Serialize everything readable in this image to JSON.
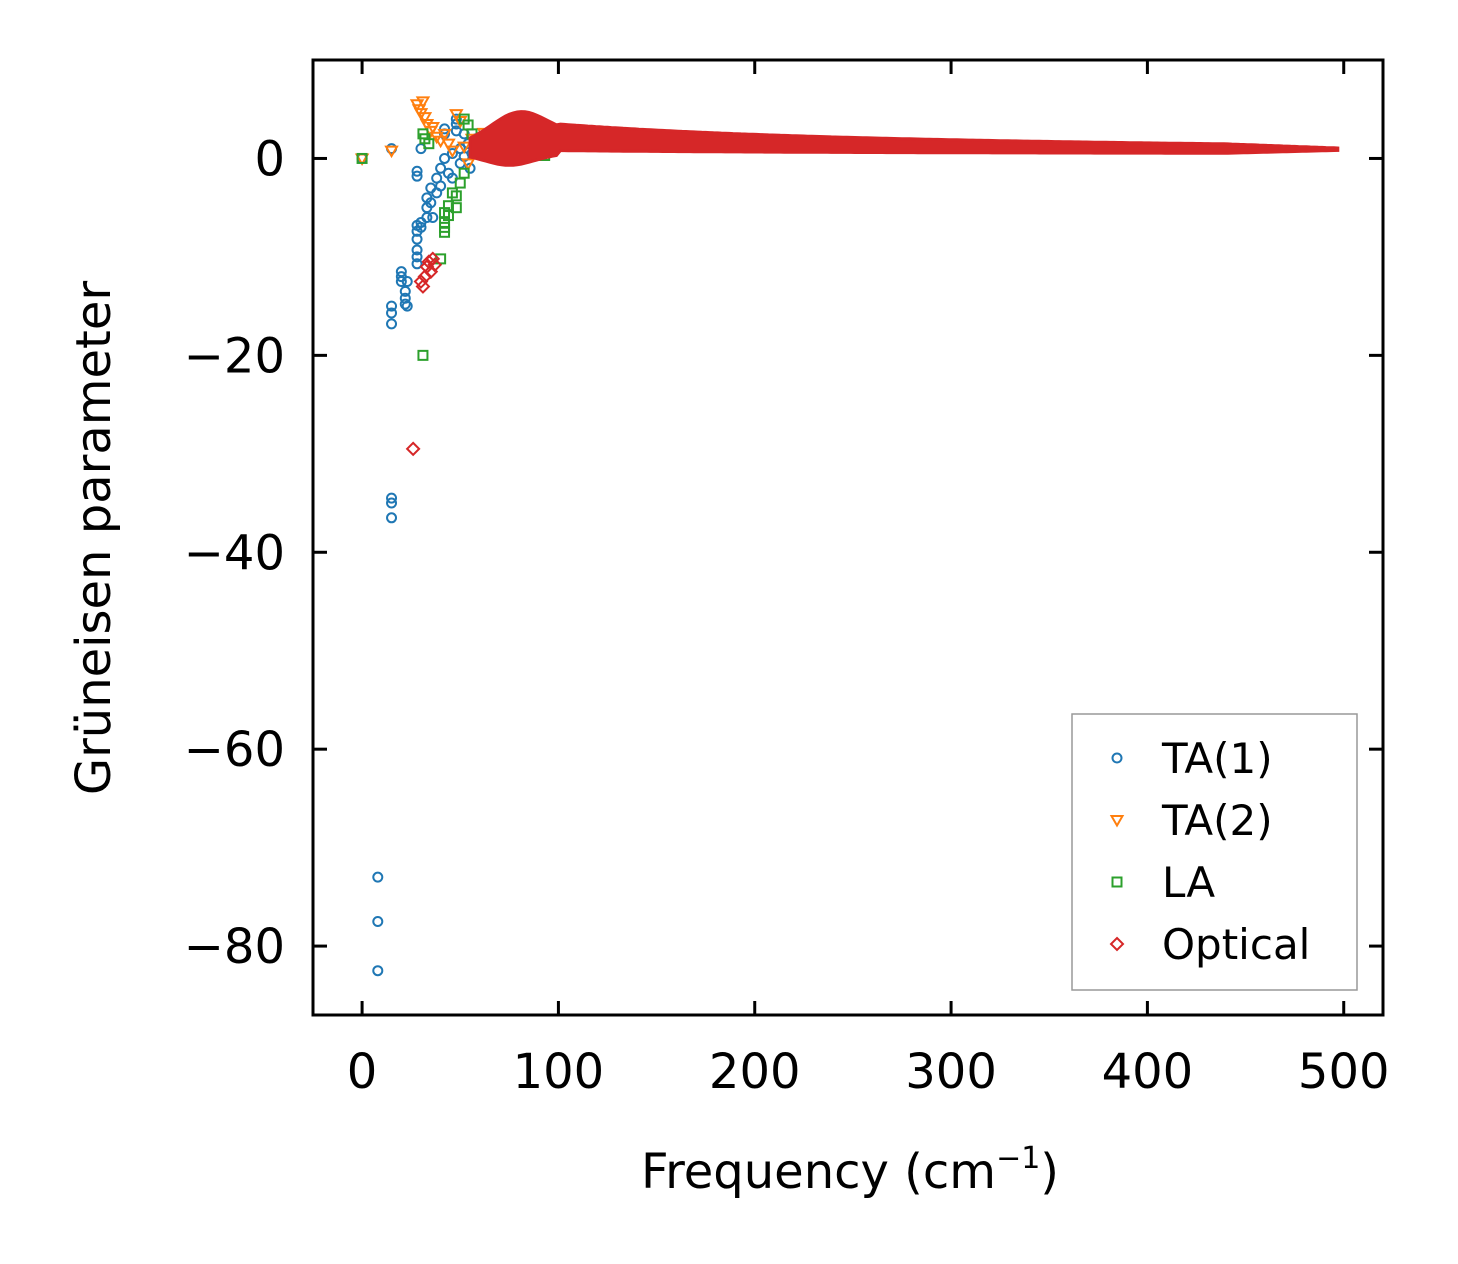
{
  "chart_data": {
    "type": "scatter",
    "title": "",
    "xlabel_main": "Frequency (cm",
    "xlabel_sup": "−1",
    "xlabel_tail": ")",
    "ylabel": "Grüneisen parameter",
    "xlim": [
      -25,
      520
    ],
    "ylim": [
      -87,
      10
    ],
    "xticks": [
      0,
      100,
      200,
      300,
      400,
      500
    ],
    "xtick_labels": [
      "0",
      "100",
      "200",
      "300",
      "400",
      "500"
    ],
    "yticks": [
      0,
      -20,
      -40,
      -60,
      -80
    ],
    "ytick_labels": [
      "0",
      "−20",
      "−40",
      "−60",
      "−80"
    ],
    "legend_position": "lower-right",
    "series": [
      {
        "name": "TA(1)",
        "marker": "circle",
        "color": "#1f77b4",
        "points": [
          [
            0,
            0
          ],
          [
            8,
            -73
          ],
          [
            8,
            -77.5
          ],
          [
            8,
            -82.5
          ],
          [
            15,
            -34.5
          ],
          [
            15,
            -35
          ],
          [
            15,
            -36.5
          ],
          [
            15,
            -15
          ],
          [
            15,
            -15.7
          ],
          [
            15,
            -16.8
          ],
          [
            15,
            1
          ],
          [
            20,
            -11.5
          ],
          [
            20,
            -12
          ],
          [
            20,
            -12.5
          ],
          [
            22,
            -13.5
          ],
          [
            22,
            -14.2
          ],
          [
            22,
            -14.8
          ],
          [
            23,
            -12.5
          ],
          [
            23,
            -15
          ],
          [
            28,
            -6.8
          ],
          [
            28,
            -7.4
          ],
          [
            28,
            -8.2
          ],
          [
            28,
            -9.3
          ],
          [
            28,
            -10
          ],
          [
            28,
            -10.7
          ],
          [
            28,
            -1.3
          ],
          [
            28,
            -1.8
          ],
          [
            30,
            -6.5
          ],
          [
            30,
            -7
          ],
          [
            30,
            1
          ],
          [
            33,
            -4
          ],
          [
            33,
            -5
          ],
          [
            33,
            -6
          ],
          [
            35,
            -3
          ],
          [
            35,
            -4.5
          ],
          [
            36,
            -6
          ],
          [
            38,
            -2
          ],
          [
            38,
            -3.5
          ],
          [
            40,
            -1
          ],
          [
            40,
            -2.8
          ],
          [
            42,
            2.5
          ],
          [
            42,
            3
          ],
          [
            42,
            0
          ],
          [
            44,
            -1.5
          ],
          [
            46,
            0.5
          ],
          [
            46,
            -2
          ],
          [
            48,
            3.5
          ],
          [
            48,
            2.8
          ],
          [
            48,
            4
          ],
          [
            50,
            1
          ],
          [
            50,
            -0.5
          ],
          [
            52,
            2.5
          ],
          [
            52,
            0.2
          ],
          [
            54,
            1.5
          ],
          [
            55,
            -1
          ],
          [
            56,
            0.5
          ],
          [
            58,
            2
          ],
          [
            60,
            1.2
          ],
          [
            62,
            0.8
          ],
          [
            64,
            1.5
          ],
          [
            66,
            0.3
          ],
          [
            68,
            1
          ],
          [
            70,
            1.8
          ],
          [
            72,
            0.7
          ],
          [
            75,
            1.1
          ],
          [
            78,
            0.9
          ],
          [
            80,
            1.3
          ],
          [
            82,
            0.6
          ],
          [
            84,
            1
          ]
        ]
      },
      {
        "name": "TA(2)",
        "marker": "triangle-down",
        "color": "#ff7f0e",
        "points": [
          [
            0,
            0
          ],
          [
            15,
            0.8
          ],
          [
            28,
            5.5
          ],
          [
            29,
            5
          ],
          [
            30,
            4.6
          ],
          [
            31,
            5.8
          ],
          [
            32,
            4.2
          ],
          [
            33,
            3.5
          ],
          [
            35,
            2.8
          ],
          [
            36,
            3.2
          ],
          [
            38,
            2.2
          ],
          [
            40,
            1.8
          ],
          [
            42,
            2.5
          ],
          [
            44,
            1.5
          ],
          [
            46,
            0.8
          ],
          [
            48,
            4.5
          ],
          [
            50,
            3.8
          ],
          [
            52,
            1.2
          ],
          [
            54,
            -0.5
          ],
          [
            56,
            2
          ],
          [
            58,
            1.4
          ],
          [
            60,
            0.5
          ],
          [
            62,
            2.6
          ],
          [
            64,
            1.7
          ],
          [
            66,
            0.9
          ],
          [
            68,
            2.2
          ],
          [
            70,
            1.6
          ],
          [
            72,
            0.4
          ],
          [
            74,
            2.4
          ],
          [
            76,
            1.1
          ],
          [
            78,
            1.9
          ],
          [
            80,
            0.7
          ],
          [
            82,
            1.5
          ],
          [
            84,
            2.1
          ]
        ]
      },
      {
        "name": "LA",
        "marker": "square",
        "color": "#2ca02c",
        "points": [
          [
            0,
            0
          ],
          [
            31,
            -20
          ],
          [
            31,
            2.5
          ],
          [
            32,
            2
          ],
          [
            34,
            1.5
          ],
          [
            40,
            -10.2
          ],
          [
            42,
            -5.5
          ],
          [
            42,
            -7.5
          ],
          [
            42,
            -7
          ],
          [
            42,
            -6.5
          ],
          [
            44,
            -4.8
          ],
          [
            44,
            -5.8
          ],
          [
            46,
            -3.5
          ],
          [
            48,
            -5
          ],
          [
            48,
            -3.8
          ],
          [
            50,
            -2.5
          ],
          [
            52,
            4
          ],
          [
            52,
            -1.5
          ],
          [
            54,
            3.4
          ],
          [
            56,
            2.5
          ],
          [
            58,
            1
          ],
          [
            60,
            1.8
          ],
          [
            62,
            0.5
          ],
          [
            64,
            1.5
          ],
          [
            66,
            2.2
          ],
          [
            68,
            0.8
          ],
          [
            70,
            1.4
          ],
          [
            72,
            2
          ],
          [
            74,
            1.1
          ],
          [
            76,
            1.6
          ],
          [
            78,
            0.9
          ],
          [
            80,
            1.3
          ],
          [
            82,
            1.8
          ],
          [
            84,
            0.7
          ],
          [
            86,
            1.5
          ],
          [
            88,
            1.2
          ],
          [
            90,
            0.5
          ],
          [
            91,
            1.9
          ],
          [
            92,
            1
          ],
          [
            93,
            0.3
          ]
        ]
      },
      {
        "name": "Optical",
        "marker": "diamond",
        "color": "#d62728",
        "points": [
          [
            26,
            -29.5
          ],
          [
            30,
            -12.5
          ],
          [
            31,
            -13
          ],
          [
            32,
            -12
          ],
          [
            33,
            -11
          ],
          [
            34,
            -10.5
          ],
          [
            35,
            -11.5
          ],
          [
            36,
            -10.2
          ],
          [
            37,
            -10.8
          ]
        ]
      }
    ]
  }
}
